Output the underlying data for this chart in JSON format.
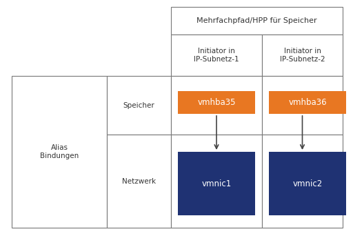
{
  "fig_width": 5.12,
  "fig_height": 3.42,
  "dpi": 100,
  "bg_color": "#ffffff",
  "border_color": "#777777",
  "orange_color": "#E87722",
  "blue_color": "#1F3273",
  "white_text": "#ffffff",
  "dark_text": "#333333",
  "header_top": "Mehrfachpfad/HPP für Speicher",
  "header_col1": "Initiator in\nIP-Subnetz-1",
  "header_col2": "Initiator in\nIP-Subnetz-2",
  "row_label_left": "Alias\nBindungen",
  "row_label_speicher": "Speicher",
  "row_label_netzwerk": "Netzwerk",
  "box1_storage_label": "vmhba35",
  "box2_storage_label": "vmhba36",
  "box1_network_label": "vmnic1",
  "box2_network_label": "vmnic2",
  "lw": 0.8,
  "font_size_header": 8.0,
  "font_size_label": 7.5,
  "font_size_box": 8.5,
  "arrow_color": "#444444",
  "arrow_lw": 1.2
}
